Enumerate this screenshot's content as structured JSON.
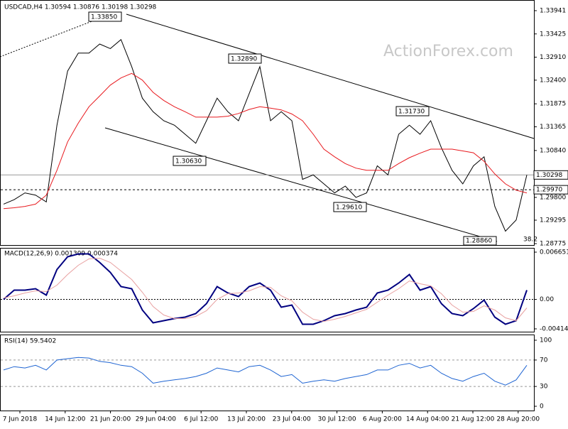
{
  "chart_data": [
    {
      "type": "line",
      "title": "USDCAD,H4  1.30594 1.30876 1.30198 1.30298",
      "series": [
        {
          "color": "#000000",
          "values": [
            1.2965,
            1.2975,
            1.299,
            1.2985,
            1.297,
            1.314,
            1.326,
            1.33,
            1.33,
            1.332,
            1.331,
            1.333,
            1.327,
            1.32,
            1.317,
            1.315,
            1.314,
            1.312,
            1.31,
            1.315,
            1.32,
            1.317,
            1.315,
            1.321,
            1.327,
            1.315,
            1.317,
            1.315,
            1.302,
            1.303,
            1.301,
            1.299,
            1.3005,
            1.298,
            1.299,
            1.305,
            1.303,
            1.312,
            1.314,
            1.312,
            1.315,
            1.309,
            1.304,
            1.301,
            1.305,
            1.307,
            1.296,
            1.2905,
            1.293,
            1.303
          ]
        },
        {
          "color": "#e8191e",
          "values": [
            1.2955,
            1.2957,
            1.296,
            1.2965,
            1.2985,
            1.304,
            1.3103,
            1.3145,
            1.3181,
            1.3205,
            1.3229,
            1.3245,
            1.3255,
            1.324,
            1.3213,
            1.3195,
            1.3181,
            1.317,
            1.3158,
            1.3158,
            1.3158,
            1.316,
            1.3166,
            1.3175,
            1.3181,
            1.3178,
            1.3174,
            1.3165,
            1.315,
            1.312,
            1.3087,
            1.307,
            1.3055,
            1.3045,
            1.304,
            1.304,
            1.304,
            1.3055,
            1.3068,
            1.3078,
            1.3087,
            1.3087,
            1.3087,
            1.3083,
            1.3079,
            1.306,
            1.3032,
            1.301,
            1.2996,
            1.299
          ]
        }
      ],
      "ylim": [
        1.28775,
        1.33941
      ],
      "yticks": [
        1.33941,
        1.33425,
        {
          "value": 1.3291,
          "label": "1.32910"
        },
        {
          "value": 1.324,
          "label": "1.32400"
        },
        1.31875,
        1.31365,
        {
          "value": 1.3084,
          "label": "1.30840"
        },
        {
          "value": 1.298,
          "label": "1.29800"
        },
        1.29295,
        1.28775
      ],
      "hlines": [
        {
          "value": 1.30298,
          "label": "1.30298"
        },
        {
          "value": 1.2997,
          "label": "1.29970"
        }
      ],
      "annotations": [
        "1.33850",
        "1.32890",
        "1.31730",
        "1.30630",
        "1.29610",
        "1.28860",
        "38.2"
      ],
      "watermark": "ActionForex.com"
    },
    {
      "type": "line",
      "title": "MACD(12,26,9) 0.001309 0.000374",
      "series": [
        {
          "color": "#000080",
          "values": [
            0.0,
            0.0013,
            0.0013,
            0.0015,
            0.0006,
            0.0042,
            0.006,
            0.0064,
            0.0064,
            0.0052,
            0.0038,
            0.0018,
            0.0015,
            -0.0015,
            -0.0033,
            -0.003,
            -0.0027,
            -0.0025,
            -0.002,
            -0.0006,
            0.0018,
            0.0009,
            0.0004,
            0.0018,
            0.0023,
            0.0013,
            -0.0011,
            -0.0008,
            -0.0035,
            -0.0035,
            -0.003,
            -0.0023,
            -0.002,
            -0.0015,
            -0.0011,
            0.0009,
            0.0013,
            0.0023,
            0.0035,
            0.0013,
            0.0018,
            -0.0006,
            -0.002,
            -0.0023,
            -0.0013,
            -0.0001,
            -0.0025,
            -0.0035,
            -0.003,
            0.0013
          ]
        },
        {
          "color": "#e8a0a0",
          "values": [
            0.0002,
            0.0005,
            0.0009,
            0.0012,
            0.0011,
            0.002,
            0.0035,
            0.0048,
            0.0057,
            0.0058,
            0.0052,
            0.004,
            0.0028,
            0.001,
            -0.001,
            -0.0022,
            -0.0027,
            -0.0027,
            -0.0024,
            -0.0016,
            0.0,
            0.0008,
            0.0009,
            0.0012,
            0.0018,
            0.0017,
            0.0005,
            -0.0002,
            -0.0018,
            -0.0028,
            -0.0031,
            -0.0028,
            -0.0024,
            -0.0019,
            -0.0014,
            -0.0004,
            0.0006,
            0.0015,
            0.0026,
            0.0022,
            0.0019,
            0.0008,
            -0.0008,
            -0.0018,
            -0.0017,
            -0.0009,
            -0.0015,
            -0.0026,
            -0.003,
            -0.0012
          ]
        }
      ],
      "ylim": [
        -0.004145,
        0.006651
      ],
      "yticks": [
        0.006651,
        {
          "value": 0,
          "label": "0.00"
        },
        -0.004145
      ]
    },
    {
      "type": "line",
      "title": "RSI(14) 59.5402",
      "series": [
        {
          "color": "#1e64d2",
          "values": [
            55,
            60,
            58,
            62,
            55,
            70,
            72,
            74,
            73,
            68,
            66,
            62,
            60,
            50,
            35,
            38,
            40,
            42,
            45,
            50,
            58,
            55,
            52,
            60,
            62,
            55,
            45,
            48,
            35,
            38,
            40,
            38,
            42,
            45,
            48,
            55,
            55,
            62,
            65,
            58,
            62,
            50,
            42,
            38,
            45,
            50,
            38,
            32,
            40,
            62
          ]
        }
      ],
      "ylim": [
        0,
        100
      ],
      "yticks": [
        100,
        70,
        30,
        0
      ],
      "levels": [
        70,
        30
      ],
      "xtick_labels": [
        "7 Jun 2018",
        "14 Jun 12:00",
        "21 Jun 20:00",
        "29 Jun 04:00",
        "6 Jul 12:00",
        "13 Jul 20:00",
        "23 Jul 04:00",
        "30 Jul 12:00",
        "6 Aug 20:00",
        "14 Aug 04:00",
        "21 Aug 12:00",
        "28 Aug 20:00"
      ]
    }
  ]
}
